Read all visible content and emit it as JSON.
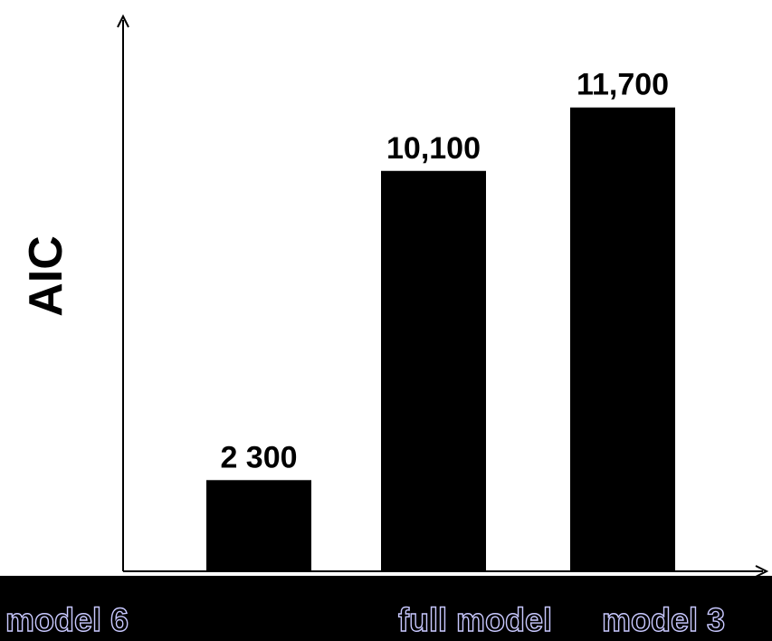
{
  "chart_data": {
    "type": "bar",
    "title": "",
    "xlabel": "",
    "ylabel": "AIC",
    "categories": [
      "model 6",
      "full model",
      "model 3"
    ],
    "values": [
      2300,
      10100,
      11700
    ],
    "value_labels": [
      "2 300",
      "10,100",
      "11,700"
    ],
    "ylim": [
      0,
      14000
    ],
    "grid": false,
    "legend": "none",
    "colors": {
      "bar": "#000000",
      "axis": "#000000",
      "label_band": "#000000",
      "label_text": "#000000",
      "label_outline": "#c8c8ff"
    }
  }
}
